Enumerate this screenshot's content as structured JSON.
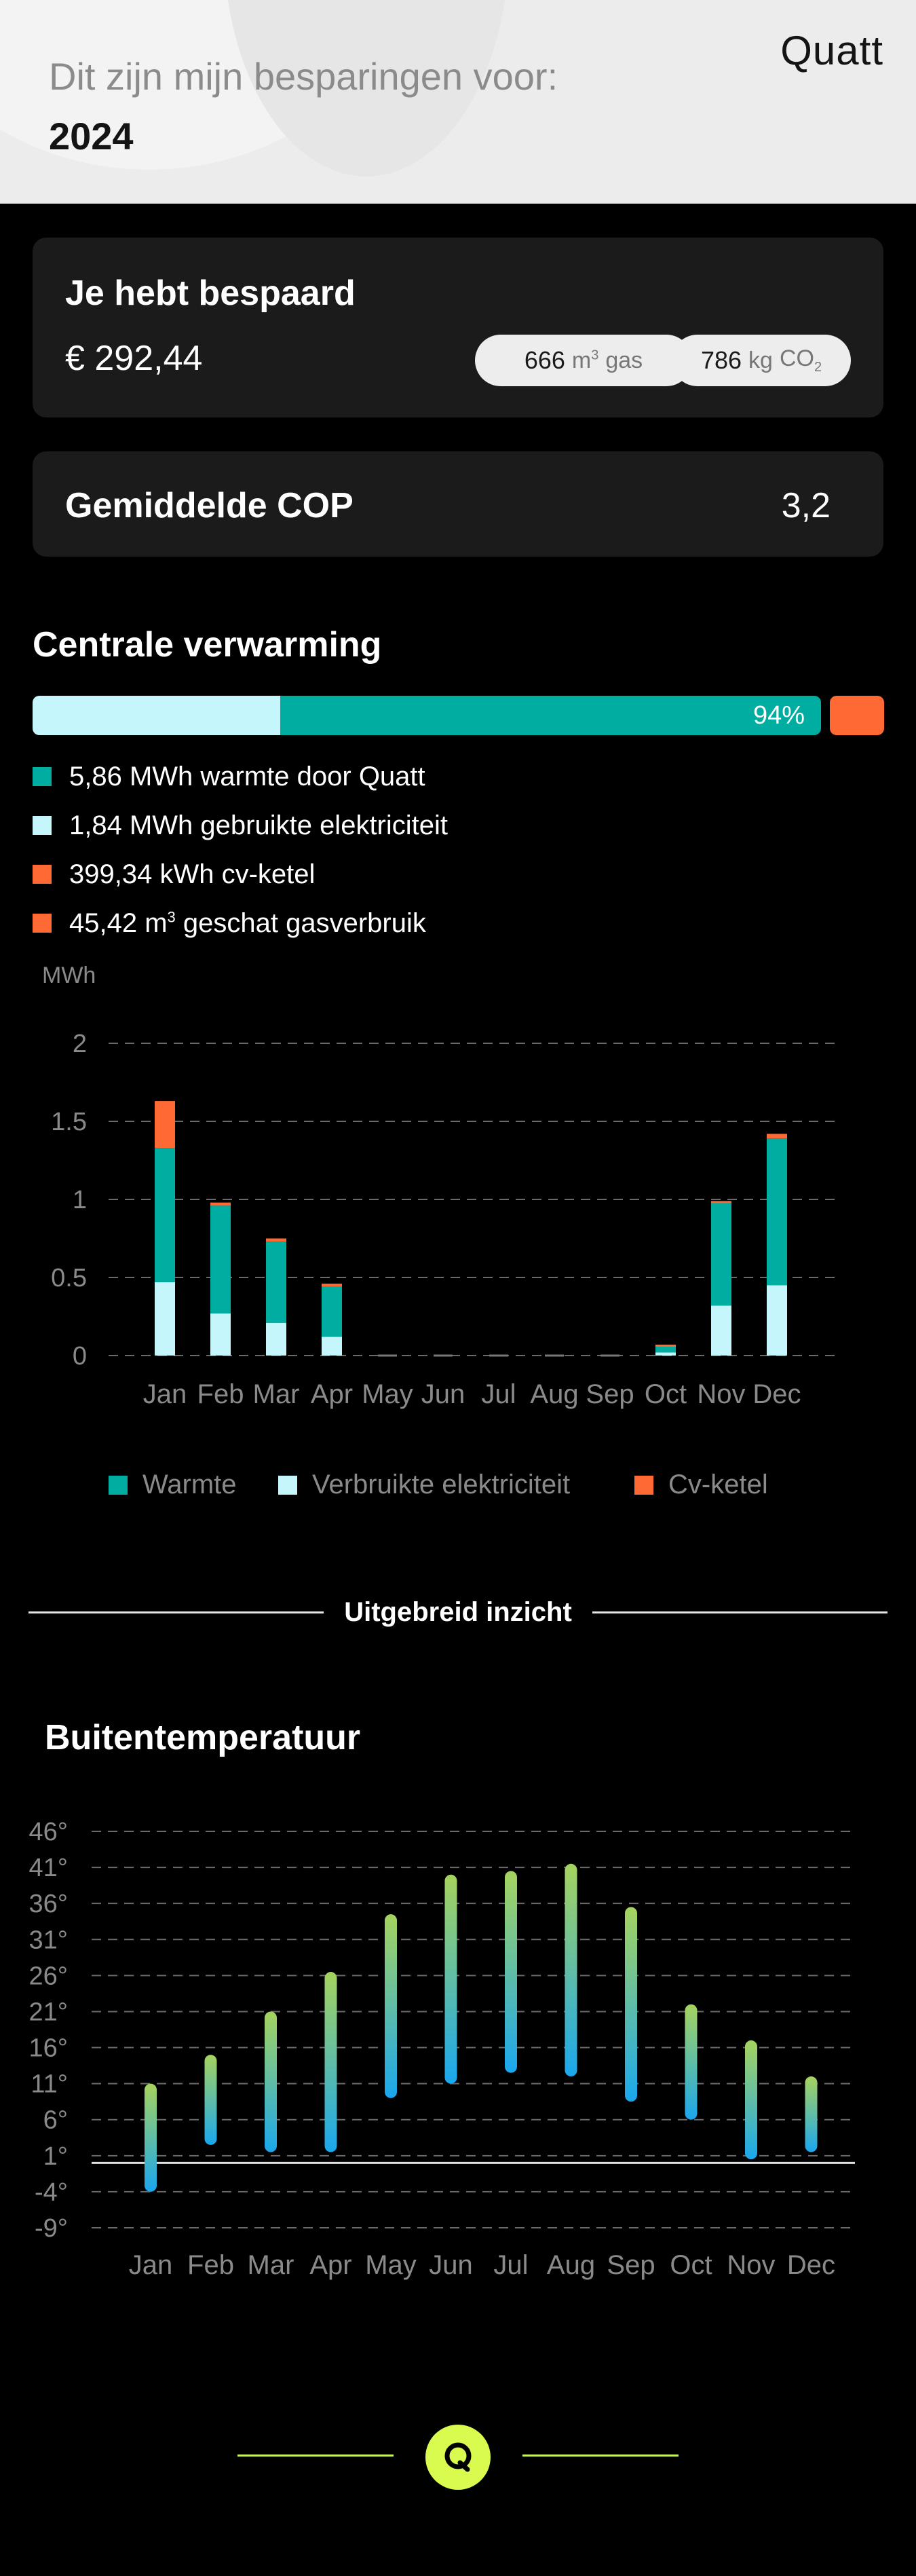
{
  "header": {
    "subtitle": "Dit zijn mijn besparingen voor:",
    "year": "2024",
    "logo": "Quatt"
  },
  "savings": {
    "title": "Je hebt bespaard",
    "amount": "€ 292,44",
    "gas_value": "666",
    "gas_unit": "m",
    "gas_unit_sup": "3",
    "gas_label": "gas",
    "co2_value": "786",
    "co2_unit": "kg",
    "co2_label": "CO",
    "co2_sub": "2"
  },
  "cop": {
    "label": "Gemiddelde COP",
    "value": "3,2"
  },
  "heating": {
    "title": "Centrale verwarming",
    "percent_label": "94%",
    "percent": 94,
    "electricity_share": 0.314,
    "legend": [
      {
        "text": "5,86 MWh warmte door Quatt",
        "color": "#00ada1"
      },
      {
        "text": "1,84 MWh gebruikte elektriciteit",
        "color": "#c5f6fb"
      },
      {
        "text": "399,34 kWh cv-ketel",
        "color": "#ff6a34"
      },
      {
        "text_pre": "45,42 m",
        "text_sup": "3",
        "text_post": " geschat gasverbruik",
        "color": "#ff6a34"
      }
    ]
  },
  "energy_chart_legend": {
    "warmte": "Warmte",
    "elektriciteit": "Verbruikte elektriciteit",
    "cv": "Cv-ketel"
  },
  "divider": {
    "text": "Uitgebreid inzicht"
  },
  "temperature": {
    "title": "Buitentemperatuur"
  },
  "footer": {
    "logo_icon": "quatt-q-icon"
  },
  "chart_data": [
    {
      "type": "bar",
      "ylabel": "MWh",
      "ylim": [
        0,
        2
      ],
      "yticks": [
        "2",
        "1.5",
        "1",
        "0.5",
        "0"
      ],
      "ytick_values": [
        2,
        1.5,
        1,
        0.5,
        0
      ],
      "categories": [
        "Jan",
        "Feb",
        "Mar",
        "Apr",
        "May",
        "Jun",
        "Jul",
        "Aug",
        "Sep",
        "Oct",
        "Nov",
        "Dec"
      ],
      "stacked": true,
      "legend_position": "bottom",
      "grid": true,
      "series": [
        {
          "name": "Verbruikte elektriciteit",
          "color": "#c5f6fb",
          "values": [
            0.47,
            0.27,
            0.21,
            0.12,
            0,
            0,
            0,
            0,
            0,
            0.02,
            0.32,
            0.45
          ]
        },
        {
          "name": "Warmte",
          "color": "#00ada1",
          "values": [
            0.86,
            0.69,
            0.52,
            0.32,
            0,
            0,
            0,
            0,
            0,
            0.04,
            0.66,
            0.94
          ]
        },
        {
          "name": "Cv-ketel",
          "color": "#ff6a34",
          "values": [
            0.3,
            0.02,
            0.02,
            0.02,
            0,
            0,
            0,
            0,
            0,
            0.01,
            0.01,
            0.03
          ]
        }
      ]
    },
    {
      "type": "bar",
      "subtype": "range",
      "ylim": [
        -9,
        46
      ],
      "yticks": [
        "46°",
        "41°",
        "36°",
        "31°",
        "26°",
        "21°",
        "16°",
        "11°",
        "6°",
        "1°",
        "-4°",
        "-9°"
      ],
      "ytick_values": [
        46,
        41,
        36,
        31,
        26,
        21,
        16,
        11,
        6,
        1,
        -4,
        -9
      ],
      "categories": [
        "Jan",
        "Feb",
        "Mar",
        "Apr",
        "May",
        "Jun",
        "Jul",
        "Aug",
        "Sep",
        "Oct",
        "Nov",
        "Dec"
      ],
      "grid": true,
      "reference_line": 0,
      "colors": {
        "top": "#a6d35e",
        "bottom": "#1aa7ee"
      },
      "series": [
        {
          "name": "min",
          "values": [
            -4,
            2.5,
            1.5,
            1.5,
            9,
            11,
            12.5,
            12,
            8.5,
            6,
            0.5,
            1.5
          ]
        },
        {
          "name": "max",
          "values": [
            11,
            15,
            21,
            26.5,
            34.5,
            40,
            40.5,
            41.5,
            35.5,
            22,
            17,
            12
          ]
        }
      ]
    }
  ]
}
